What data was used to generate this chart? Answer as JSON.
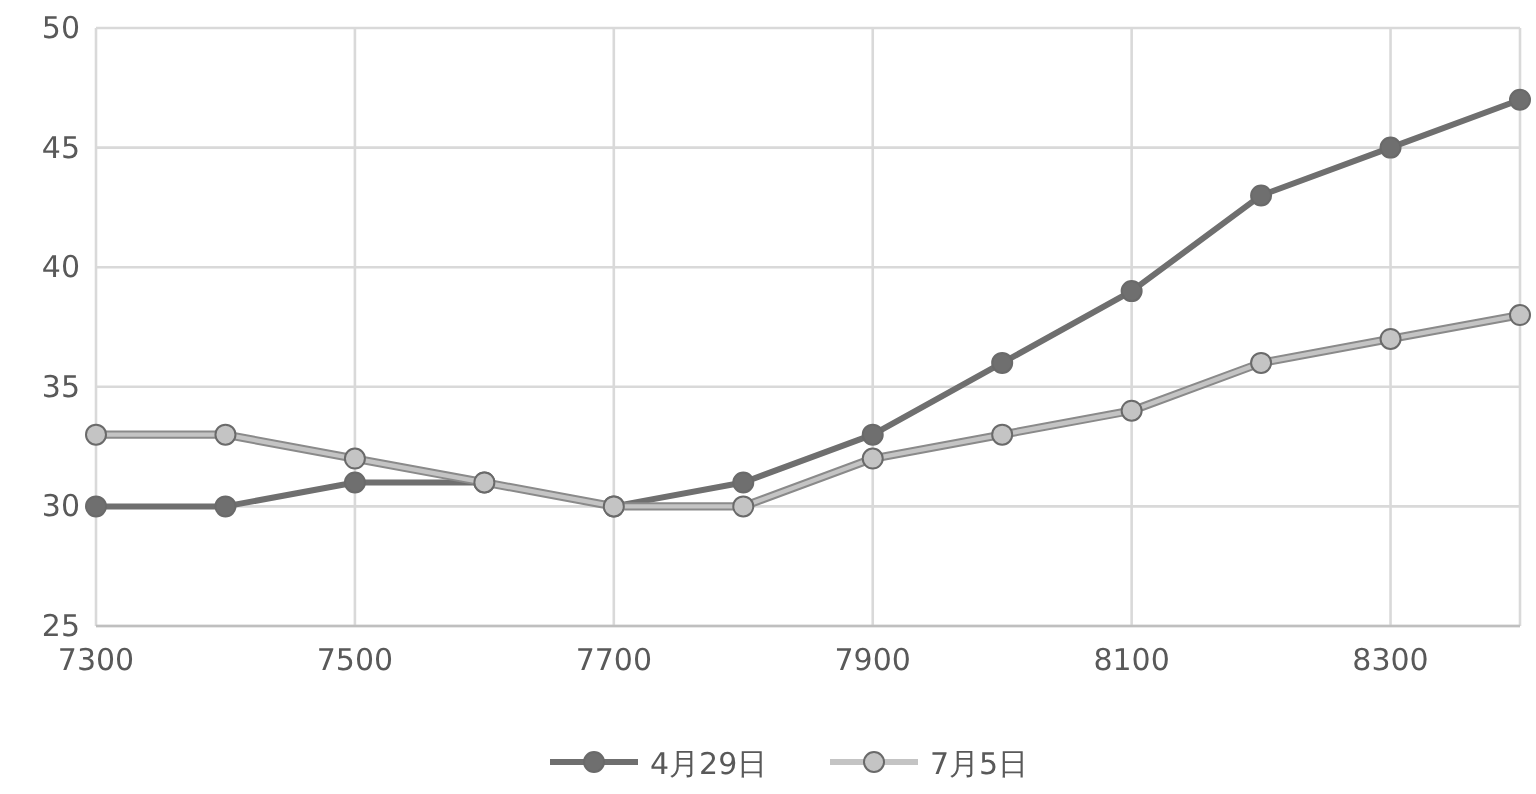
{
  "chart_data": {
    "type": "line",
    "x": [
      7300,
      7400,
      7500,
      7600,
      7700,
      7800,
      7900,
      8000,
      8100,
      8200,
      8300,
      8400
    ],
    "series": [
      {
        "name": "4月29日",
        "color": "#6f6f6f",
        "values": [
          30,
          30,
          31,
          31,
          30,
          31,
          33,
          36,
          39,
          43,
          45,
          47
        ]
      },
      {
        "name": "7月5日",
        "color": "#c4c4c4",
        "values": [
          33,
          33,
          32,
          31,
          30,
          30,
          32,
          33,
          34,
          36,
          37,
          38
        ]
      }
    ],
    "xlim": [
      7300,
      8400
    ],
    "xticks": [
      7300,
      7500,
      7700,
      7900,
      8100,
      8300
    ],
    "ylim": [
      25,
      50
    ],
    "yticks": [
      25,
      30,
      35,
      40,
      45,
      50
    ],
    "grid": true,
    "legend": "bottom",
    "marker": "circle",
    "line_style": "solid"
  }
}
